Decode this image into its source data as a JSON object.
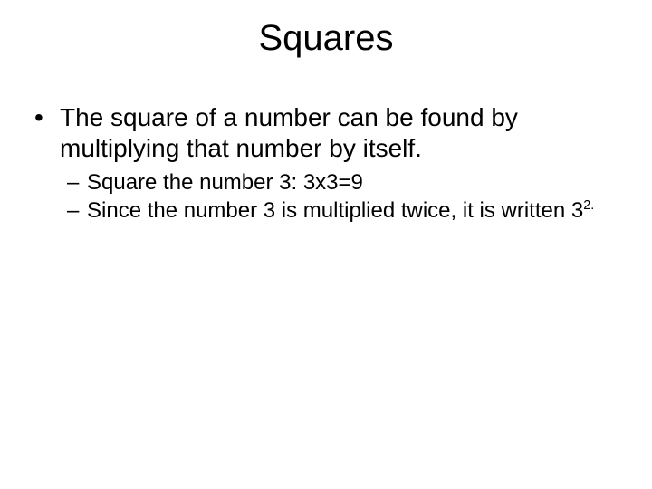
{
  "slide": {
    "title": "Squares",
    "main_bullet": "The square of a number can be found by multiplying that number by itself.",
    "sub_bullets": [
      {
        "text": "Square the number 3: 3x3=9"
      },
      {
        "prefix": "Since the number 3 is multiplied twice, it is written 3",
        "superscript": "2.",
        "suffix": ""
      }
    ],
    "colors": {
      "background": "#ffffff",
      "text": "#000000"
    },
    "typography": {
      "title_fontsize": 40,
      "main_bullet_fontsize": 28,
      "sub_bullet_fontsize": 24,
      "font_family": "Arial"
    }
  }
}
